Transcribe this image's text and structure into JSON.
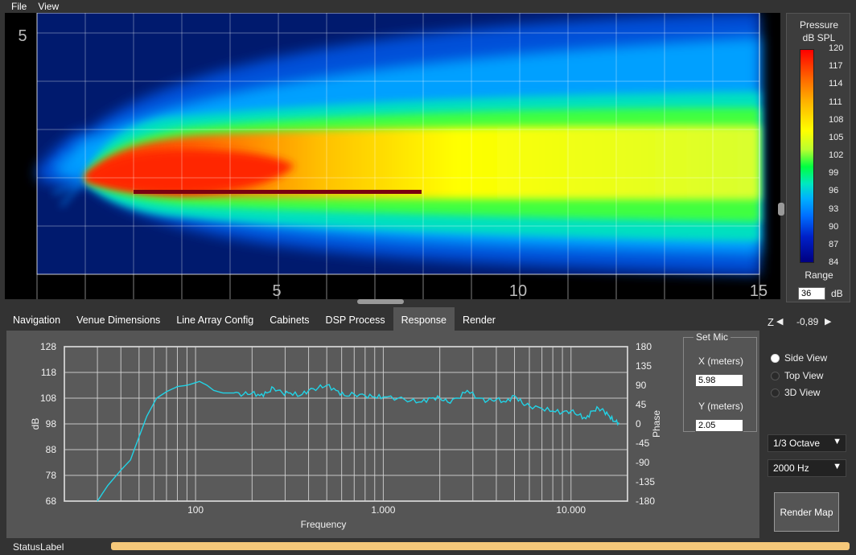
{
  "menu": {
    "file": "File",
    "view": "View"
  },
  "plot": {
    "x_ticks": [
      "5",
      "10",
      "15"
    ],
    "y_tick": "5"
  },
  "legend": {
    "title_line1": "Pressure",
    "title_line2": "dB SPL",
    "ticks": [
      "120",
      "117",
      "114",
      "111",
      "108",
      "105",
      "102",
      "99",
      "96",
      "93",
      "90",
      "87",
      "84"
    ],
    "range_label": "Range",
    "range_value": "36",
    "range_unit": "dB"
  },
  "tabs": [
    {
      "label": "Navigation"
    },
    {
      "label": "Venue Dimensions"
    },
    {
      "label": "Line Array Config"
    },
    {
      "label": "Cabinets"
    },
    {
      "label": "DSP Process"
    },
    {
      "label": "Response"
    },
    {
      "label": "Render"
    }
  ],
  "active_tab": "Response",
  "chart_data": {
    "type": "line",
    "xlabel": "Frequency",
    "ylabel": "dB",
    "y2label": "Phase",
    "xscale": "log",
    "xlim": [
      20,
      20000
    ],
    "ylim": [
      68,
      128
    ],
    "y2lim": [
      -180,
      180
    ],
    "x_tick_labels": [
      "100",
      "1.000",
      "10.000"
    ],
    "y_tick_labels": [
      "128",
      "118",
      "108",
      "98",
      "88",
      "78",
      "68"
    ],
    "y2_tick_labels": [
      "180",
      "135",
      "90",
      "45",
      "0",
      "-45",
      "-90",
      "-135",
      "-180"
    ],
    "series": [
      {
        "color": "#22d3e6",
        "points": [
          [
            30,
            68
          ],
          [
            34,
            74
          ],
          [
            40,
            80
          ],
          [
            45,
            84
          ],
          [
            50,
            93
          ],
          [
            55,
            101
          ],
          [
            62,
            108
          ],
          [
            70,
            110.5
          ],
          [
            80,
            112.5
          ],
          [
            90,
            113
          ],
          [
            100,
            114
          ],
          [
            105,
            114.5
          ],
          [
            115,
            113
          ],
          [
            125,
            111
          ],
          [
            140,
            110
          ],
          [
            160,
            110
          ],
          [
            180,
            109.5
          ],
          [
            200,
            110
          ],
          [
            220,
            109
          ],
          [
            240,
            110
          ],
          [
            260,
            112
          ],
          [
            290,
            110
          ],
          [
            320,
            110
          ],
          [
            360,
            109
          ],
          [
            400,
            111
          ],
          [
            450,
            112
          ],
          [
            500,
            113
          ],
          [
            560,
            111
          ],
          [
            620,
            109
          ],
          [
            700,
            109.5
          ],
          [
            800,
            109
          ],
          [
            900,
            108.5
          ],
          [
            1000,
            108.5
          ],
          [
            1200,
            108
          ],
          [
            1400,
            107
          ],
          [
            1600,
            106.5
          ],
          [
            1800,
            108
          ],
          [
            2000,
            108
          ],
          [
            2200,
            106.5
          ],
          [
            2500,
            108
          ],
          [
            2800,
            111
          ],
          [
            3200,
            108
          ],
          [
            3600,
            107
          ],
          [
            4000,
            107.5
          ],
          [
            4500,
            106.5
          ],
          [
            5000,
            109
          ],
          [
            5500,
            106
          ],
          [
            6000,
            105
          ],
          [
            7000,
            104
          ],
          [
            8000,
            103
          ],
          [
            9000,
            102.5
          ],
          [
            10000,
            103
          ],
          [
            11000,
            101.5
          ],
          [
            12000,
            100
          ],
          [
            13000,
            103
          ],
          [
            14000,
            104
          ],
          [
            15000,
            103
          ],
          [
            16000,
            101
          ],
          [
            17000,
            99
          ],
          [
            18000,
            98.5
          ]
        ]
      }
    ]
  },
  "set_mic": {
    "title": "Set Mic",
    "x_label": "X (meters)",
    "x_value": "5.98",
    "y_label": "Y (meters)",
    "y_value": "2.05"
  },
  "z_control": {
    "label": "Z",
    "value": "-0,89"
  },
  "views": {
    "side": "Side View",
    "top": "Top View",
    "three_d": "3D View",
    "selected": "side"
  },
  "octave_select": "1/3 Octave",
  "freq_select": "2000 Hz",
  "render_button": "Render Map",
  "status_label": "StatusLabel",
  "progress_fraction": 1.0
}
